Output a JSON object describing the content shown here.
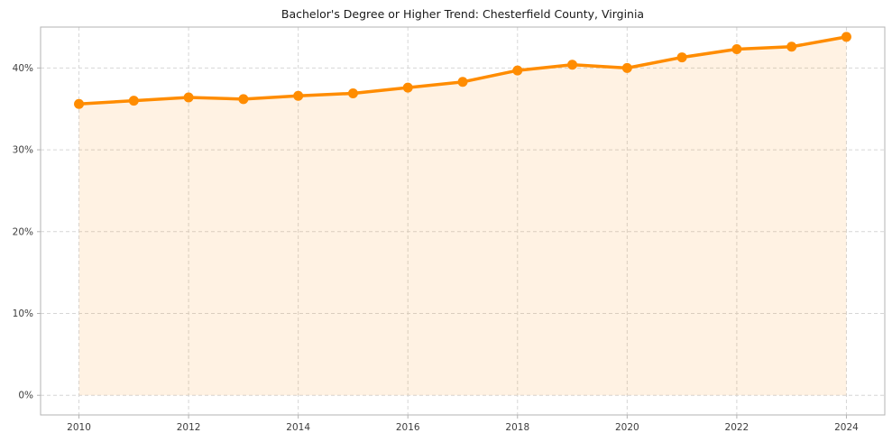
{
  "page": {
    "background": "#ffffff"
  },
  "chart_data": {
    "type": "line",
    "title": "Bachelor's Degree or Higher Trend: Chesterfield County, Virginia",
    "x": [
      2010,
      2011,
      2012,
      2013,
      2014,
      2015,
      2016,
      2017,
      2018,
      2019,
      2020,
      2021,
      2022,
      2023,
      2024
    ],
    "series": [
      {
        "name": "Bachelor's Degree or Higher (%)",
        "values": [
          35.6,
          36.0,
          36.4,
          36.2,
          36.6,
          36.9,
          37.6,
          38.3,
          39.7,
          40.4,
          40.0,
          41.3,
          42.3,
          42.6,
          43.8
        ]
      }
    ],
    "xlabel": "",
    "ylabel": "",
    "xlim": [
      2009.3,
      2024.7
    ],
    "ylim": [
      -2.4,
      45.0
    ],
    "xticks": [
      2010,
      2012,
      2014,
      2016,
      2018,
      2020,
      2022,
      2024
    ],
    "xtick_labels": [
      "2010",
      "2012",
      "2014",
      "2016",
      "2018",
      "2020",
      "2022",
      "2024"
    ],
    "yticks": [
      0,
      10,
      20,
      30,
      40
    ],
    "ytick_labels": [
      "0%",
      "10%",
      "20%",
      "30%",
      "40%"
    ],
    "grid": "dashed",
    "legend": "none",
    "area_baseline": 0,
    "marker": {
      "shape": "circle",
      "radius": 5.5
    },
    "line_width": 3.5,
    "colors": {
      "line": "#ff8c00",
      "fill": "rgba(255,140,0,0.11)",
      "grid": "#d6d6d6",
      "spine": "#b3b3b3",
      "tick_text": "#3d3d3d",
      "title_text": "#1a1a1a"
    }
  }
}
